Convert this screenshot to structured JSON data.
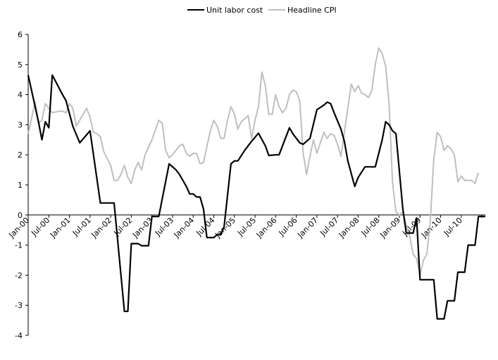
{
  "chart_data": {
    "type": "line",
    "title": "",
    "xlabel": "",
    "ylabel": "",
    "ylim": [
      -4,
      6
    ],
    "yticks": [
      -4,
      -3,
      -2,
      -1,
      0,
      1,
      2,
      3,
      4,
      5,
      6
    ],
    "x_start": "Jan-00",
    "x_end": "Feb-11",
    "x_tick_labels": [
      "Jan-00",
      "Jul-00",
      "Jan-01",
      "Jul-01",
      "Jan-02",
      "Jul-02",
      "Jan-03",
      "Jul-03",
      "Jan-04",
      "Jul-04",
      "Jan-05",
      "Jul-05",
      "Jan-06",
      "Jul-06",
      "Jan-07",
      "Jul-07",
      "Jan-08",
      "Jul-08",
      "Jan-09",
      "Jul-09",
      "Jan-10",
      "Jul-10"
    ],
    "grid": false,
    "legend_position": "top",
    "series": [
      {
        "name": "Unit labor cost",
        "color": "#000000",
        "points": [
          [
            "Jan-00",
            4.65
          ],
          [
            "Apr-00",
            3.1
          ],
          [
            "May-00",
            2.5
          ],
          [
            "Jun-00",
            3.1
          ],
          [
            "Jul-00",
            2.9
          ],
          [
            "Aug-00",
            4.65
          ],
          [
            "Nov-00",
            4.0
          ],
          [
            "Dec-00",
            3.8
          ],
          [
            "Feb-01",
            2.95
          ],
          [
            "Apr-01",
            2.4
          ],
          [
            "Jul-01",
            2.8
          ],
          [
            "Oct-01",
            0.4
          ],
          [
            "Jan-02",
            0.4
          ],
          [
            "Feb-02",
            0.4
          ],
          [
            "May-02",
            -3.2
          ],
          [
            "Jun-02",
            -3.2
          ],
          [
            "Jul-02",
            -0.95
          ],
          [
            "Aug-02",
            -0.95
          ],
          [
            "Sep-02",
            -0.95
          ],
          [
            "Oct-02",
            -1.02
          ],
          [
            "Nov-02",
            -1.02
          ],
          [
            "Dec-02",
            -1.02
          ],
          [
            "Jan-03",
            -0.05
          ],
          [
            "Mar-03",
            -0.05
          ],
          [
            "Jun-03",
            1.7
          ],
          [
            "Aug-03",
            1.5
          ],
          [
            "Sep-03",
            1.35
          ],
          [
            "Nov-03",
            0.95
          ],
          [
            "Dec-03",
            0.7
          ],
          [
            "Jan-04",
            0.7
          ],
          [
            "Feb-04",
            0.6
          ],
          [
            "Mar-04",
            0.6
          ],
          [
            "Apr-04",
            0.2
          ],
          [
            "May-04",
            -0.75
          ],
          [
            "Jul-04",
            -0.75
          ],
          [
            "Aug-04",
            -0.65
          ],
          [
            "Sep-04",
            -0.65
          ],
          [
            "Oct-04",
            -0.4
          ],
          [
            "Dec-04",
            1.7
          ],
          [
            "Jan-05",
            1.8
          ],
          [
            "Feb-05",
            1.8
          ],
          [
            "Apr-05",
            2.15
          ],
          [
            "Jun-05",
            2.45
          ],
          [
            "Aug-05",
            2.72
          ],
          [
            "Oct-05",
            2.3
          ],
          [
            "Nov-05",
            1.98
          ],
          [
            "Jan-06",
            2.0
          ],
          [
            "Feb-06",
            2.0
          ],
          [
            "May-06",
            2.9
          ],
          [
            "Jun-06",
            2.7
          ],
          [
            "Aug-06",
            2.4
          ],
          [
            "Sep-06",
            2.35
          ],
          [
            "Nov-06",
            2.55
          ],
          [
            "Jan-07",
            3.5
          ],
          [
            "Mar-07",
            3.65
          ],
          [
            "Apr-07",
            3.75
          ],
          [
            "May-07",
            3.7
          ],
          [
            "Jun-07",
            3.4
          ],
          [
            "Aug-07",
            2.85
          ],
          [
            "Sep-07",
            2.45
          ],
          [
            "Oct-07",
            1.8
          ],
          [
            "Dec-07",
            0.95
          ],
          [
            "Jan-08",
            1.25
          ],
          [
            "Mar-08",
            1.6
          ],
          [
            "May-08",
            1.6
          ],
          [
            "Jun-08",
            1.6
          ],
          [
            "Aug-08",
            2.5
          ],
          [
            "Sep-08",
            3.1
          ],
          [
            "Oct-08",
            3.0
          ],
          [
            "Nov-08",
            2.8
          ],
          [
            "Dec-08",
            2.7
          ],
          [
            "Feb-09",
            0.2
          ],
          [
            "Mar-09",
            -0.6
          ],
          [
            "Apr-09",
            -0.6
          ],
          [
            "May-09",
            -0.6
          ],
          [
            "Jun-09",
            -0.1
          ],
          [
            "Jul-09",
            -2.15
          ],
          [
            "Aug-09",
            -2.15
          ],
          [
            "Sep-09",
            -2.15
          ],
          [
            "Oct-09",
            -2.15
          ],
          [
            "Nov-09",
            -2.15
          ],
          [
            "Dec-09",
            -3.45
          ],
          [
            "Jan-10",
            -3.45
          ],
          [
            "Feb-10",
            -3.45
          ],
          [
            "Mar-10",
            -2.85
          ],
          [
            "Apr-10",
            -2.85
          ],
          [
            "May-10",
            -2.85
          ],
          [
            "Jun-10",
            -1.9
          ],
          [
            "Jul-10",
            -1.9
          ],
          [
            "Aug-10",
            -1.9
          ],
          [
            "Sep-10",
            -1.0
          ],
          [
            "Oct-10",
            -1.0
          ],
          [
            "Nov-10",
            -1.0
          ],
          [
            "Dec-10",
            -0.05
          ],
          [
            "Jan-11",
            -0.05
          ],
          [
            "Feb-11",
            -0.05
          ]
        ]
      },
      {
        "name": "Headline CPI",
        "color": "#bfbfbf",
        "points": [
          [
            "Jan-00",
            2.7
          ],
          [
            "Mar-00",
            3.75
          ],
          [
            "Apr-00",
            3.05
          ],
          [
            "May-00",
            3.15
          ],
          [
            "Jun-00",
            3.7
          ],
          [
            "Aug-00",
            3.4
          ],
          [
            "Oct-00",
            3.45
          ],
          [
            "Nov-00",
            3.45
          ],
          [
            "Dec-00",
            3.4
          ],
          [
            "Jan-01",
            3.7
          ],
          [
            "Feb-01",
            3.55
          ],
          [
            "Mar-01",
            2.95
          ],
          [
            "Jun-01",
            3.55
          ],
          [
            "Jul-01",
            3.25
          ],
          [
            "Aug-01",
            2.75
          ],
          [
            "Sep-01",
            2.7
          ],
          [
            "Oct-01",
            2.6
          ],
          [
            "Nov-01",
            2.1
          ],
          [
            "Jan-02",
            1.65
          ],
          [
            "Feb-02",
            1.15
          ],
          [
            "Mar-02",
            1.15
          ],
          [
            "Apr-02",
            1.35
          ],
          [
            "May-02",
            1.65
          ],
          [
            "Jun-02",
            1.25
          ],
          [
            "Jul-02",
            1.05
          ],
          [
            "Aug-02",
            1.5
          ],
          [
            "Sep-02",
            1.75
          ],
          [
            "Oct-02",
            1.5
          ],
          [
            "Nov-02",
            2.0
          ],
          [
            "Jan-03",
            2.5
          ],
          [
            "Mar-03",
            3.15
          ],
          [
            "Apr-03",
            3.05
          ],
          [
            "May-03",
            2.15
          ],
          [
            "Jun-03",
            1.9
          ],
          [
            "Jul-03",
            2.0
          ],
          [
            "Sep-03",
            2.3
          ],
          [
            "Oct-03",
            2.35
          ],
          [
            "Nov-03",
            2.05
          ],
          [
            "Dec-03",
            1.95
          ],
          [
            "Jan-04",
            2.05
          ],
          [
            "Feb-04",
            2.05
          ],
          [
            "Mar-04",
            1.7
          ],
          [
            "Apr-04",
            1.75
          ],
          [
            "Jun-04",
            2.8
          ],
          [
            "Jul-04",
            3.15
          ],
          [
            "Aug-04",
            2.95
          ],
          [
            "Sep-04",
            2.55
          ],
          [
            "Oct-04",
            2.55
          ],
          [
            "Nov-04",
            3.15
          ],
          [
            "Dec-04",
            3.6
          ],
          [
            "Jan-05",
            3.35
          ],
          [
            "Feb-05",
            2.85
          ],
          [
            "Mar-05",
            3.1
          ],
          [
            "May-05",
            3.3
          ],
          [
            "Jun-05",
            2.55
          ],
          [
            "Jul-05",
            3.15
          ],
          [
            "Aug-05",
            3.6
          ],
          [
            "Sep-05",
            4.75
          ],
          [
            "Oct-05",
            4.3
          ],
          [
            "Nov-05",
            3.35
          ],
          [
            "Dec-05",
            3.35
          ],
          [
            "Jan-06",
            4.0
          ],
          [
            "Feb-06",
            3.6
          ],
          [
            "Mar-06",
            3.4
          ],
          [
            "Apr-06",
            3.55
          ],
          [
            "May-06",
            4.0
          ],
          [
            "Jun-06",
            4.15
          ],
          [
            "Jul-06",
            4.1
          ],
          [
            "Aug-06",
            3.8
          ],
          [
            "Sep-06",
            2.05
          ],
          [
            "Oct-06",
            1.35
          ],
          [
            "Nov-06",
            1.95
          ],
          [
            "Dec-06",
            2.5
          ],
          [
            "Jan-07",
            2.05
          ],
          [
            "Feb-07",
            2.4
          ],
          [
            "Mar-07",
            2.75
          ],
          [
            "Apr-07",
            2.55
          ],
          [
            "May-07",
            2.7
          ],
          [
            "Jun-07",
            2.65
          ],
          [
            "Jul-07",
            2.35
          ],
          [
            "Aug-07",
            1.95
          ],
          [
            "Sep-07",
            2.75
          ],
          [
            "Oct-07",
            3.55
          ],
          [
            "Nov-07",
            4.35
          ],
          [
            "Dec-07",
            4.1
          ],
          [
            "Jan-08",
            4.3
          ],
          [
            "Feb-08",
            4.05
          ],
          [
            "Mar-08",
            4.0
          ],
          [
            "Apr-08",
            3.9
          ],
          [
            "May-08",
            4.15
          ],
          [
            "Jun-08",
            5.0
          ],
          [
            "Jul-08",
            5.55
          ],
          [
            "Aug-08",
            5.35
          ],
          [
            "Sep-08",
            4.95
          ],
          [
            "Oct-08",
            3.7
          ],
          [
            "Nov-08",
            1.1
          ],
          [
            "Dec-08",
            0.1
          ],
          [
            "Jan-09",
            0.0
          ],
          [
            "Feb-09",
            0.1
          ],
          [
            "Mar-09",
            -0.35
          ],
          [
            "Apr-09",
            -0.7
          ],
          [
            "May-09",
            -1.3
          ],
          [
            "Jun-09",
            -1.45
          ],
          [
            "Jul-09",
            -2.0
          ],
          [
            "Aug-09",
            -1.5
          ],
          [
            "Sep-09",
            -1.3
          ],
          [
            "Oct-09",
            -0.2
          ],
          [
            "Nov-09",
            1.85
          ],
          [
            "Dec-09",
            2.75
          ],
          [
            "Jan-10",
            2.6
          ],
          [
            "Feb-10",
            2.15
          ],
          [
            "Mar-10",
            2.3
          ],
          [
            "Apr-10",
            2.2
          ],
          [
            "May-10",
            2.0
          ],
          [
            "Jun-10",
            1.1
          ],
          [
            "Jul-10",
            1.3
          ],
          [
            "Aug-10",
            1.15
          ],
          [
            "Sep-10",
            1.15
          ],
          [
            "Oct-10",
            1.15
          ],
          [
            "Nov-10",
            1.05
          ],
          [
            "Dec-10",
            1.4
          ]
        ]
      }
    ]
  }
}
